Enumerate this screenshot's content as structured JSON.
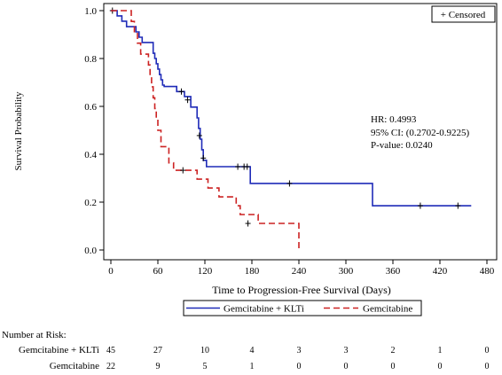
{
  "chart_data": {
    "type": "line",
    "subtype": "kaplan-meier",
    "xlabel": "Time to Progression-Free Survival (Days)",
    "ylabel": "Survival Probability",
    "xlim": [
      0,
      480
    ],
    "ylim": [
      0,
      1.0
    ],
    "xticks": [
      0,
      60,
      120,
      180,
      240,
      300,
      360,
      420,
      480
    ],
    "yticks": [
      "0.0",
      "0.2",
      "0.4",
      "0.6",
      "0.8",
      "1.0"
    ],
    "legend_position": "bottom",
    "censor_legend": "+ Censored",
    "annotations": [
      "HR: 0.4993",
      "95% CI: (0.2702-0.9225)",
      "P-value: 0.0240"
    ],
    "series": [
      {
        "name": "Gemcitabine + KLTi",
        "color": "#1f2bb8",
        "dash": "solid",
        "steps": [
          [
            0,
            1.0
          ],
          [
            8,
            0.978
          ],
          [
            14,
            0.956
          ],
          [
            20,
            0.933
          ],
          [
            32,
            0.911
          ],
          [
            36,
            0.889
          ],
          [
            40,
            0.867
          ],
          [
            54,
            0.822
          ],
          [
            56,
            0.8
          ],
          [
            58,
            0.778
          ],
          [
            60,
            0.756
          ],
          [
            62,
            0.733
          ],
          [
            64,
            0.711
          ],
          [
            66,
            0.689
          ],
          [
            68,
            0.683
          ],
          [
            84,
            0.662
          ],
          [
            94,
            0.641
          ],
          [
            102,
            0.597
          ],
          [
            110,
            0.552
          ],
          [
            112,
            0.508
          ],
          [
            114,
            0.463
          ],
          [
            116,
            0.419
          ],
          [
            118,
            0.375
          ],
          [
            122,
            0.348
          ],
          [
            178,
            0.278
          ],
          [
            334,
            0.185
          ],
          [
            460,
            0.185
          ]
        ],
        "censored": [
          [
            2,
            1.0
          ],
          [
            90,
            0.662
          ],
          [
            98,
            0.627
          ],
          [
            113,
            0.478
          ],
          [
            118,
            0.384
          ],
          [
            162,
            0.348
          ],
          [
            170,
            0.348
          ],
          [
            174,
            0.348
          ],
          [
            228,
            0.278
          ],
          [
            395,
            0.185
          ],
          [
            443,
            0.185
          ]
        ]
      },
      {
        "name": "Gemcitabine",
        "color": "#cc2222",
        "dash": "dashed",
        "steps": [
          [
            0,
            1.0
          ],
          [
            26,
            0.955
          ],
          [
            30,
            0.909
          ],
          [
            34,
            0.864
          ],
          [
            38,
            0.818
          ],
          [
            48,
            0.773
          ],
          [
            50,
            0.727
          ],
          [
            52,
            0.682
          ],
          [
            54,
            0.636
          ],
          [
            56,
            0.591
          ],
          [
            58,
            0.545
          ],
          [
            60,
            0.5
          ],
          [
            64,
            0.432
          ],
          [
            74,
            0.364
          ],
          [
            80,
            0.333
          ],
          [
            110,
            0.296
          ],
          [
            124,
            0.259
          ],
          [
            138,
            0.222
          ],
          [
            160,
            0.185
          ],
          [
            165,
            0.148
          ],
          [
            188,
            0.111
          ],
          [
            240,
            0.111
          ],
          [
            240,
            0.0
          ]
        ],
        "censored": [
          [
            92,
            0.333
          ],
          [
            175,
            0.111
          ]
        ]
      }
    ]
  },
  "risk_table": {
    "title": "Number at Risk:",
    "rows": [
      {
        "label": "Gemcitabine + KLTi",
        "values": [
          "45",
          "27",
          "10",
          "4",
          "3",
          "3",
          "2",
          "1",
          "0"
        ]
      },
      {
        "label": "Gemcitabine",
        "values": [
          "22",
          "9",
          "5",
          "1",
          "0",
          "0",
          "0",
          "0",
          "0"
        ]
      }
    ]
  }
}
